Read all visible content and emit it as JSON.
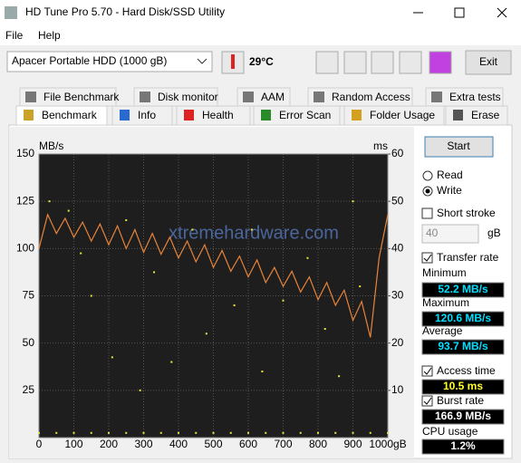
{
  "window": {
    "title": "HD Tune Pro 5.70 - Hard Disk/SSD Utility"
  },
  "menu": [
    "File",
    "Help"
  ],
  "toolbar": {
    "drive": "Apacer  Portable HDD (1000 gB)",
    "temperature": "29°C",
    "exit": "Exit"
  },
  "tabs_top": [
    "File Benchmark",
    "Disk monitor",
    "AAM",
    "Random Access",
    "Extra tests"
  ],
  "tabs_bottom": [
    "Benchmark",
    "Info",
    "Health",
    "Error Scan",
    "Folder Usage",
    "Erase"
  ],
  "watermark": "xtremehardware.com",
  "chart_data": {
    "type": "line",
    "y_label": "MB/s",
    "y2_label": "ms",
    "xlim": [
      0,
      1000
    ],
    "xticks": [
      0,
      100,
      200,
      300,
      400,
      500,
      600,
      700,
      800,
      900,
      {
        "value": 1000,
        "label": "1000gB"
      }
    ],
    "ylim": [
      0,
      150
    ],
    "yticks": [
      25,
      50,
      75,
      100,
      125,
      150
    ],
    "y2lim": [
      0,
      60
    ],
    "y2ticks": [
      10,
      20,
      30,
      40,
      50,
      60
    ],
    "grid": true,
    "series": [
      {
        "color": "#e8843a",
        "x": [
          0,
          25,
          50,
          75,
          100,
          125,
          150,
          175,
          200,
          225,
          250,
          275,
          300,
          325,
          350,
          375,
          400,
          425,
          450,
          475,
          500,
          525,
          550,
          575,
          600,
          625,
          650,
          675,
          700,
          725,
          750,
          775,
          800,
          825,
          850,
          875,
          900,
          925,
          950,
          975,
          1000
        ],
        "values": [
          100,
          118,
          108,
          116,
          106,
          114,
          104,
          113,
          102,
          112,
          100,
          110,
          98,
          108,
          97,
          106,
          95,
          104,
          93,
          102,
          90,
          99,
          88,
          96,
          85,
          94,
          82,
          90,
          80,
          88,
          77,
          85,
          73,
          82,
          70,
          78,
          62,
          72,
          53,
          95,
          118
        ]
      },
      {
        "color": "#e8e83a",
        "axis": "y2",
        "x": [
          30,
          85,
          250,
          440,
          610,
          900,
          120,
          330,
          770,
          150,
          560,
          700,
          920,
          210,
          480,
          820,
          290,
          380,
          640,
          860,
          0,
          50,
          100,
          150,
          200,
          250,
          300,
          350,
          400,
          450,
          500,
          550,
          600,
          650,
          700,
          750,
          800,
          850,
          900,
          950,
          1000
        ],
        "values": [
          50,
          48,
          46,
          44,
          44,
          50,
          39,
          35,
          38,
          30,
          28,
          29,
          32,
          17,
          22,
          23,
          10,
          16,
          14,
          13,
          1,
          1,
          1,
          1,
          1,
          1,
          1,
          1,
          1,
          1,
          1,
          1,
          1,
          1,
          1,
          1,
          1,
          1,
          1,
          1,
          1
        ]
      }
    ]
  },
  "panel": {
    "start": "Start",
    "read": "Read",
    "write": "Write",
    "short_stroke": "Short stroke",
    "short_stroke_value": "40",
    "short_stroke_unit": "gB",
    "transfer_rate": "Transfer rate",
    "minimum_label": "Minimum",
    "minimum": "52.2 MB/s",
    "maximum_label": "Maximum",
    "maximum": "120.6 MB/s",
    "average_label": "Average",
    "average": "93.7 MB/s",
    "access_time": "Access time",
    "access_time_value": "10.5 ms",
    "burst_rate": "Burst rate",
    "burst_rate_value": "166.9 MB/s",
    "cpu_usage_label": "CPU usage",
    "cpu_usage": "1.2%"
  }
}
